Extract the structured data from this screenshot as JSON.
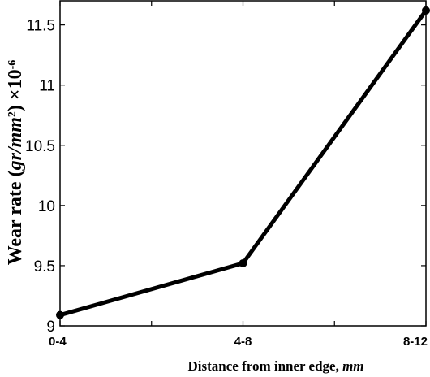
{
  "chart_data": {
    "type": "line",
    "categories": [
      "0-4",
      "4-8",
      "8-12"
    ],
    "series": [
      {
        "values": [
          9.09,
          9.52,
          11.62
        ]
      }
    ],
    "ylim": [
      9,
      11.7
    ],
    "yticks": [
      "9",
      "9.5",
      "10",
      "10.5",
      "11",
      "11.5"
    ],
    "xlabel": {
      "main": "Distance from inner edge, ",
      "unit": "mm"
    },
    "ylabel": {
      "main": "Wear rate (",
      "unit": "gr/mm",
      "unit_exp": "2",
      "close": ") ×10",
      "scale_exp": "-6"
    },
    "grid": false,
    "line_color": "#000000"
  }
}
